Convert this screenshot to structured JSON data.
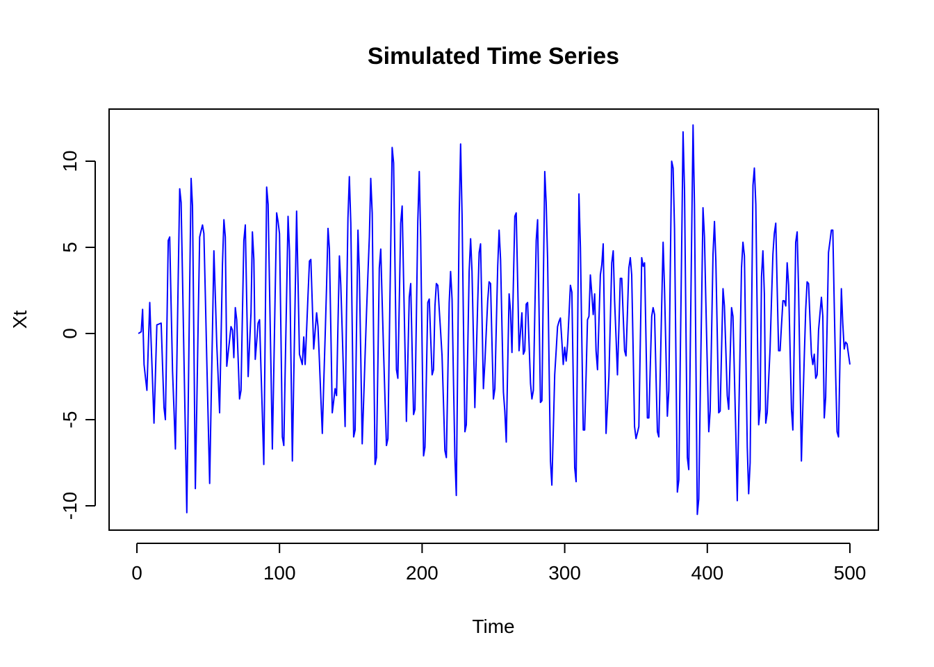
{
  "chart_data": {
    "type": "line",
    "title": "Simulated Time Series",
    "xlabel": "Time",
    "ylabel": "Xt",
    "xlim": [
      0,
      500
    ],
    "ylim": [
      -10.6,
      12.2
    ],
    "xticks": [
      0,
      100,
      200,
      300,
      400,
      500
    ],
    "yticks": [
      -10,
      -5,
      0,
      5,
      10
    ],
    "grid": false,
    "legend": "none",
    "color": "#0000ff",
    "keypoints": [
      [
        1,
        0.0
      ],
      [
        3,
        0.1
      ],
      [
        4,
        1.4
      ],
      [
        5,
        -1.8
      ],
      [
        7,
        -3.3
      ],
      [
        9,
        1.8
      ],
      [
        12,
        -5.2
      ],
      [
        14,
        0.5
      ],
      [
        17,
        0.6
      ],
      [
        19,
        -4.3
      ],
      [
        20,
        -5.0
      ],
      [
        22,
        5.4
      ],
      [
        23,
        5.6
      ],
      [
        25,
        -2.2
      ],
      [
        27,
        -6.7
      ],
      [
        30,
        8.4
      ],
      [
        31,
        7.6
      ],
      [
        35,
        -10.4
      ],
      [
        38,
        9.0
      ],
      [
        39,
        7.4
      ],
      [
        41,
        -9.0
      ],
      [
        44,
        5.6
      ],
      [
        46,
        6.3
      ],
      [
        47,
        5.8
      ],
      [
        51,
        -8.7
      ],
      [
        54,
        4.8
      ],
      [
        56,
        -0.6
      ],
      [
        58,
        -4.6
      ],
      [
        60,
        4.0
      ],
      [
        61,
        6.6
      ],
      [
        62,
        5.6
      ],
      [
        63,
        -1.9
      ],
      [
        66,
        0.4
      ],
      [
        67,
        0.2
      ],
      [
        68,
        -1.4
      ],
      [
        69,
        1.5
      ],
      [
        70,
        0.8
      ],
      [
        72,
        -3.8
      ],
      [
        73,
        -3.3
      ],
      [
        75,
        5.4
      ],
      [
        76,
        6.3
      ],
      [
        78,
        -2.5
      ],
      [
        80,
        1.2
      ],
      [
        81,
        5.9
      ],
      [
        82,
        4.3
      ],
      [
        83,
        -1.5
      ],
      [
        85,
        0.6
      ],
      [
        86,
        0.8
      ],
      [
        89,
        -7.6
      ],
      [
        91,
        8.5
      ],
      [
        92,
        7.5
      ],
      [
        95,
        -6.7
      ],
      [
        98,
        7.0
      ],
      [
        99,
        6.5
      ],
      [
        100,
        5.8
      ],
      [
        102,
        -6.0
      ],
      [
        103,
        -6.5
      ],
      [
        106,
        6.8
      ],
      [
        107,
        4.8
      ],
      [
        109,
        -7.4
      ],
      [
        112,
        7.1
      ],
      [
        114,
        -1.2
      ],
      [
        116,
        -1.8
      ],
      [
        117,
        -0.2
      ],
      [
        118,
        -1.8
      ],
      [
        121,
        4.2
      ],
      [
        122,
        4.3
      ],
      [
        124,
        -0.9
      ],
      [
        126,
        1.2
      ],
      [
        127,
        0.4
      ],
      [
        130,
        -5.8
      ],
      [
        133,
        2.7
      ],
      [
        134,
        6.1
      ],
      [
        135,
        4.9
      ],
      [
        137,
        -4.6
      ],
      [
        139,
        -3.2
      ],
      [
        140,
        -3.6
      ],
      [
        142,
        4.5
      ],
      [
        143,
        2.8
      ],
      [
        146,
        -5.4
      ],
      [
        147,
        1.2
      ],
      [
        148,
        6.7
      ],
      [
        149,
        9.1
      ],
      [
        150,
        6.4
      ],
      [
        152,
        -6.0
      ],
      [
        153,
        -5.6
      ],
      [
        155,
        6.0
      ],
      [
        156,
        3.5
      ],
      [
        158,
        -6.4
      ],
      [
        161,
        1.2
      ],
      [
        163,
        5.6
      ],
      [
        164,
        9.0
      ],
      [
        165,
        7.0
      ],
      [
        167,
        -7.6
      ],
      [
        168,
        -7.2
      ],
      [
        170,
        3.8
      ],
      [
        171,
        4.9
      ],
      [
        173,
        -1.1
      ],
      [
        175,
        -6.5
      ],
      [
        176,
        -6.1
      ],
      [
        179,
        10.8
      ],
      [
        180,
        9.9
      ],
      [
        182,
        -2.1
      ],
      [
        183,
        -2.6
      ],
      [
        185,
        6.4
      ],
      [
        186,
        7.4
      ],
      [
        189,
        -5.1
      ],
      [
        191,
        2.1
      ],
      [
        192,
        2.9
      ],
      [
        194,
        -4.7
      ],
      [
        195,
        -4.4
      ],
      [
        197,
        6.5
      ],
      [
        198,
        9.4
      ],
      [
        199,
        5.6
      ],
      [
        201,
        -7.1
      ],
      [
        202,
        -6.6
      ],
      [
        204,
        1.8
      ],
      [
        205,
        2.0
      ],
      [
        207,
        -2.4
      ],
      [
        208,
        -2.1
      ],
      [
        209,
        1.6
      ],
      [
        210,
        2.9
      ],
      [
        211,
        2.8
      ],
      [
        214,
        -1.3
      ],
      [
        216,
        -6.8
      ],
      [
        217,
        -7.2
      ],
      [
        219,
        1.8
      ],
      [
        220,
        3.6
      ],
      [
        221,
        2.0
      ],
      [
        223,
        -7.2
      ],
      [
        224,
        -9.4
      ],
      [
        226,
        6.9
      ],
      [
        227,
        11.0
      ],
      [
        228,
        6.9
      ],
      [
        230,
        -5.7
      ],
      [
        231,
        -5.3
      ],
      [
        233,
        3.6
      ],
      [
        234,
        5.5
      ],
      [
        235,
        3.6
      ],
      [
        237,
        -4.3
      ],
      [
        239,
        1.8
      ],
      [
        240,
        4.7
      ],
      [
        241,
        5.2
      ],
      [
        243,
        -3.2
      ],
      [
        244,
        -1.7
      ],
      [
        246,
        1.9
      ],
      [
        247,
        3.0
      ],
      [
        248,
        2.9
      ],
      [
        250,
        -3.8
      ],
      [
        251,
        -3.2
      ],
      [
        253,
        3.9
      ],
      [
        254,
        6.0
      ],
      [
        255,
        4.3
      ],
      [
        257,
        -3.4
      ],
      [
        258,
        -4.5
      ],
      [
        259,
        -6.3
      ],
      [
        261,
        2.3
      ],
      [
        262,
        1.3
      ],
      [
        263,
        -1.1
      ],
      [
        265,
        6.8
      ],
      [
        266,
        7.0
      ],
      [
        268,
        -1.0
      ],
      [
        270,
        1.2
      ],
      [
        271,
        -1.2
      ],
      [
        272,
        -1.0
      ],
      [
        273,
        1.7
      ],
      [
        274,
        1.8
      ],
      [
        276,
        -2.9
      ],
      [
        277,
        -3.8
      ],
      [
        278,
        -3.3
      ],
      [
        280,
        5.4
      ],
      [
        281,
        6.6
      ],
      [
        283,
        -4.0
      ],
      [
        284,
        -3.9
      ],
      [
        286,
        9.4
      ],
      [
        287,
        7.6
      ],
      [
        288,
        4.3
      ],
      [
        290,
        -7.4
      ],
      [
        291,
        -8.8
      ],
      [
        293,
        -2.4
      ],
      [
        295,
        0.4
      ],
      [
        296,
        0.7
      ],
      [
        297,
        0.9
      ],
      [
        299,
        -1.8
      ],
      [
        300,
        -0.8
      ],
      [
        301,
        -1.6
      ],
      [
        302,
        -0.6
      ],
      [
        304,
        2.8
      ],
      [
        305,
        2.4
      ],
      [
        307,
        -7.8
      ],
      [
        308,
        -8.6
      ],
      [
        310,
        8.1
      ],
      [
        311,
        5.0
      ],
      [
        313,
        -5.6
      ],
      [
        314,
        -5.6
      ],
      [
        316,
        0.8
      ],
      [
        317,
        1.0
      ],
      [
        318,
        3.4
      ],
      [
        319,
        2.3
      ],
      [
        320,
        1.1
      ],
      [
        321,
        2.3
      ],
      [
        322,
        -1.0
      ],
      [
        323,
        -2.1
      ],
      [
        325,
        3.4
      ],
      [
        326,
        4.0
      ],
      [
        327,
        5.2
      ],
      [
        329,
        -5.8
      ],
      [
        331,
        -2.5
      ],
      [
        333,
        4.1
      ],
      [
        334,
        4.8
      ],
      [
        335,
        1.9
      ],
      [
        337,
        -2.4
      ],
      [
        339,
        3.2
      ],
      [
        340,
        3.2
      ],
      [
        342,
        -1.0
      ],
      [
        343,
        -1.3
      ],
      [
        345,
        3.8
      ],
      [
        346,
        4.4
      ],
      [
        347,
        3.4
      ],
      [
        349,
        -5.4
      ],
      [
        350,
        -6.1
      ],
      [
        352,
        -5.4
      ],
      [
        354,
        4.4
      ],
      [
        355,
        3.9
      ],
      [
        356,
        4.1
      ],
      [
        358,
        -4.9
      ],
      [
        359,
        -4.9
      ],
      [
        361,
        1.0
      ],
      [
        362,
        1.5
      ],
      [
        363,
        1.1
      ],
      [
        365,
        -5.7
      ],
      [
        366,
        -6.0
      ],
      [
        369,
        5.3
      ],
      [
        370,
        2.6
      ],
      [
        372,
        -4.8
      ],
      [
        373,
        -3.3
      ],
      [
        375,
        10.0
      ],
      [
        376,
        9.6
      ],
      [
        377,
        6.1
      ],
      [
        379,
        -9.2
      ],
      [
        380,
        -8.5
      ],
      [
        383,
        11.7
      ],
      [
        384,
        8.3
      ],
      [
        386,
        -7.2
      ],
      [
        387,
        -7.9
      ],
      [
        390,
        12.1
      ],
      [
        391,
        7.5
      ],
      [
        393,
        -10.5
      ],
      [
        394,
        -9.6
      ],
      [
        397,
        7.3
      ],
      [
        398,
        5.6
      ],
      [
        401,
        -5.7
      ],
      [
        402,
        -4.5
      ],
      [
        404,
        4.6
      ],
      [
        405,
        6.5
      ],
      [
        406,
        4.2
      ],
      [
        408,
        -4.6
      ],
      [
        409,
        -4.5
      ],
      [
        411,
        2.6
      ],
      [
        412,
        1.6
      ],
      [
        414,
        -3.6
      ],
      [
        415,
        -4.4
      ],
      [
        417,
        1.5
      ],
      [
        418,
        1.0
      ],
      [
        420,
        -5.8
      ],
      [
        421,
        -9.7
      ],
      [
        424,
        3.8
      ],
      [
        425,
        5.3
      ],
      [
        426,
        4.5
      ],
      [
        428,
        -6.6
      ],
      [
        429,
        -9.3
      ],
      [
        430,
        -7.5
      ],
      [
        432,
        8.6
      ],
      [
        433,
        9.6
      ],
      [
        434,
        7.5
      ],
      [
        436,
        -5.3
      ],
      [
        437,
        -4.4
      ],
      [
        438,
        3.3
      ],
      [
        439,
        4.8
      ],
      [
        440,
        2.3
      ],
      [
        441,
        -5.2
      ],
      [
        442,
        -4.6
      ],
      [
        444,
        -0.9
      ],
      [
        446,
        4.6
      ],
      [
        447,
        5.8
      ],
      [
        448,
        6.4
      ],
      [
        450,
        -1.0
      ],
      [
        451,
        -1.0
      ],
      [
        453,
        1.9
      ],
      [
        454,
        1.9
      ],
      [
        455,
        1.6
      ],
      [
        456,
        4.1
      ],
      [
        457,
        2.8
      ],
      [
        459,
        -4.4
      ],
      [
        460,
        -5.6
      ],
      [
        462,
        5.3
      ],
      [
        463,
        5.9
      ],
      [
        464,
        2.6
      ],
      [
        466,
        -7.4
      ],
      [
        467,
        -4.2
      ],
      [
        469,
        1.4
      ],
      [
        470,
        3.0
      ],
      [
        471,
        2.9
      ],
      [
        473,
        -1.2
      ],
      [
        474,
        -1.8
      ],
      [
        475,
        -1.2
      ],
      [
        476,
        -2.6
      ],
      [
        477,
        -2.4
      ],
      [
        478,
        0.2
      ],
      [
        480,
        2.1
      ],
      [
        481,
        1.0
      ],
      [
        482,
        -4.9
      ],
      [
        483,
        -3.7
      ],
      [
        485,
        4.7
      ],
      [
        487,
        6.0
      ],
      [
        488,
        6.0
      ],
      [
        490,
        -2.4
      ],
      [
        491,
        -5.7
      ],
      [
        492,
        -6.0
      ],
      [
        494,
        2.6
      ],
      [
        495,
        0.6
      ],
      [
        496,
        -0.9
      ],
      [
        497,
        -0.5
      ],
      [
        498,
        -0.6
      ],
      [
        500,
        -1.8
      ]
    ]
  }
}
